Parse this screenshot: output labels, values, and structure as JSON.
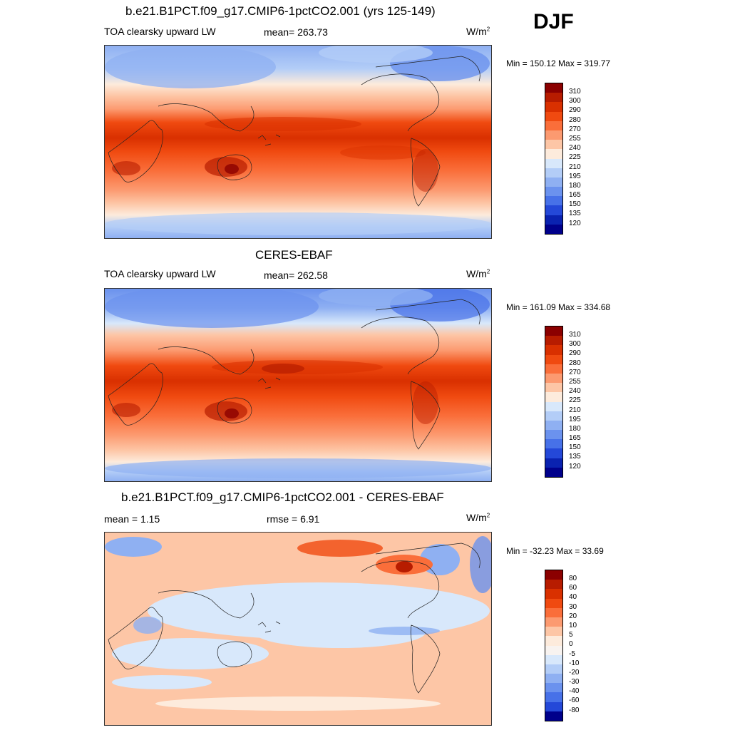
{
  "season": "DJF",
  "units_base": "W/m",
  "units_exp": "2",
  "panels": [
    {
      "title": "b.e21.B1PCT.f09_g17.CMIP6-1pctCO2.001 (yrs 125-149)",
      "left_label": "TOA clearsky upward LW",
      "mean_label": "mean= 263.73",
      "minmax": "Min = 150.12 Max = 319.77",
      "palette_name": "absolute"
    },
    {
      "title": "CERES-EBAF",
      "left_label": "TOA clearsky upward LW",
      "mean_label": "mean= 262.58",
      "minmax": "Min = 161.09 Max = 334.68",
      "palette_name": "absolute"
    },
    {
      "title": "b.e21.B1PCT.f09_g17.CMIP6-1pctCO2.001 - CERES-EBAF",
      "left_label": "mean =   1.15",
      "mean_label": "rmse =   6.91",
      "minmax": "Min = -32.23 Max =  33.69",
      "palette_name": "difference"
    }
  ],
  "colorbars": {
    "absolute": {
      "labels": [
        "310",
        "300",
        "290",
        "280",
        "270",
        "255",
        "240",
        "225",
        "210",
        "195",
        "180",
        "165",
        "150",
        "135",
        "120"
      ],
      "colors": [
        "#8b0000",
        "#b71c00",
        "#d93000",
        "#f04a10",
        "#fa6e3a",
        "#fc9a70",
        "#fdc6a6",
        "#fdebdc",
        "#d8e8fb",
        "#b3cdf7",
        "#8fb0f2",
        "#6b92ee",
        "#4771e8",
        "#2448d8",
        "#0a22b0",
        "#00008b"
      ]
    },
    "difference": {
      "labels": [
        "80",
        "60",
        "40",
        "30",
        "20",
        "10",
        "5",
        "0",
        "-5",
        "-10",
        "-20",
        "-30",
        "-40",
        "-60",
        "-80"
      ],
      "colors": [
        "#8b0000",
        "#b71c00",
        "#d93000",
        "#f04a10",
        "#fa6e3a",
        "#fc9a70",
        "#fdc6a6",
        "#fdebdc",
        "#f8f3f0",
        "#d8e8fb",
        "#b3cdf7",
        "#8fb0f2",
        "#6b92ee",
        "#4771e8",
        "#2448d8",
        "#00008b"
      ]
    }
  }
}
